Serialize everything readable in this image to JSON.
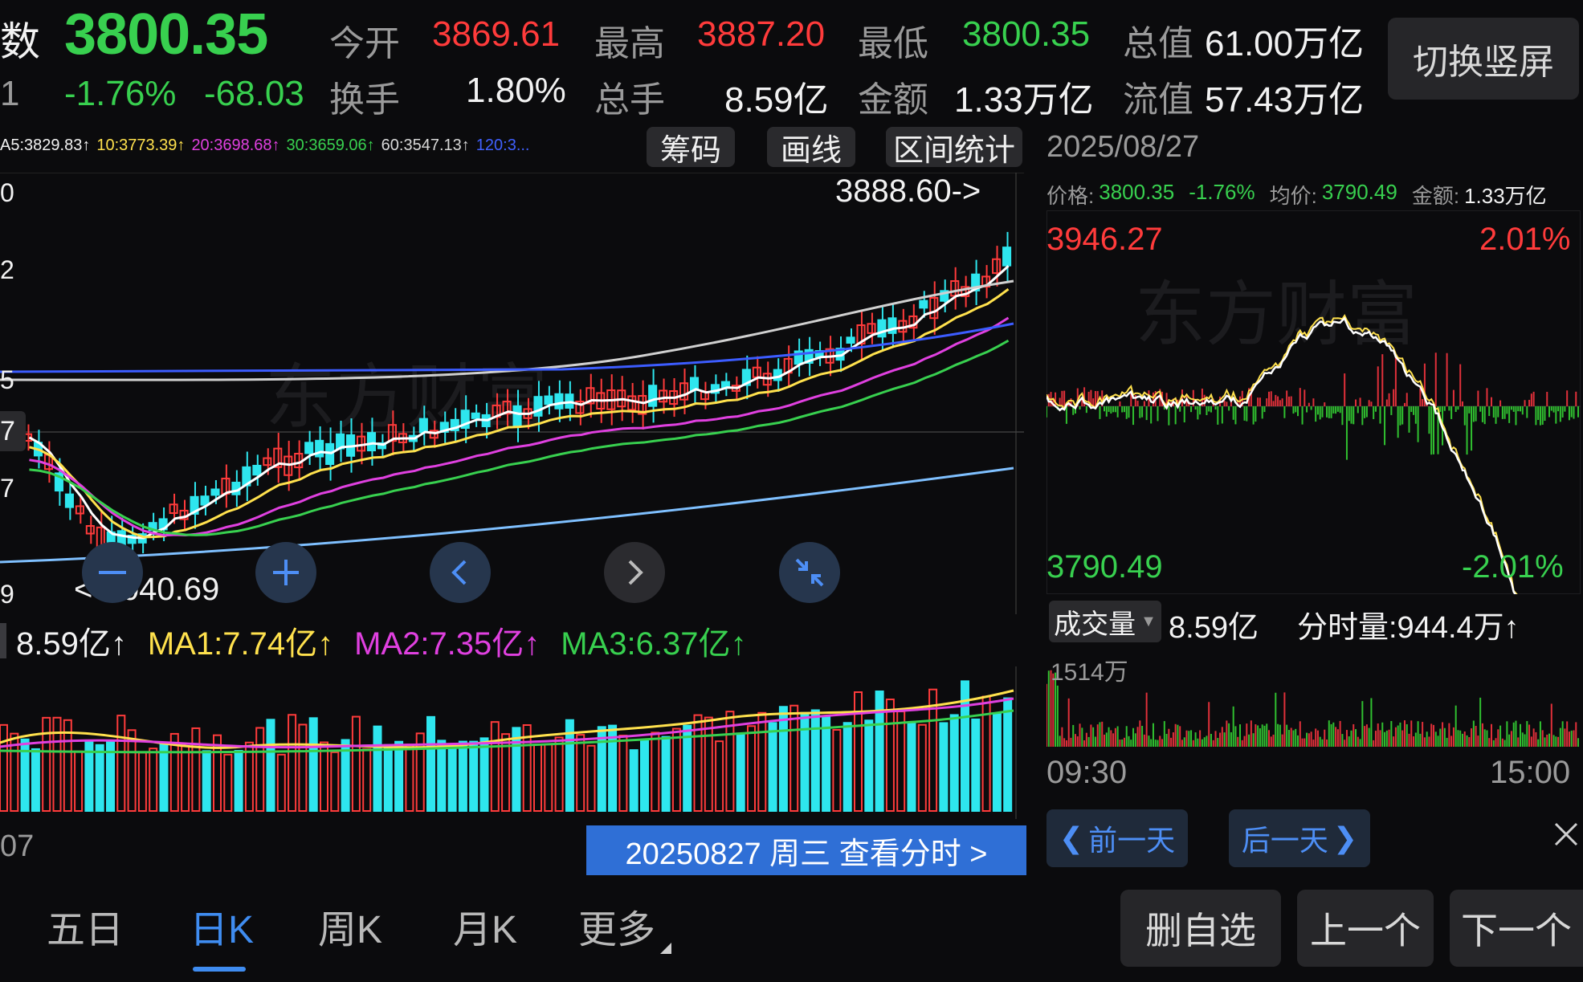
{
  "header": {
    "name_fragment": "数",
    "price": "3800.35",
    "change_pct": "-1.76%",
    "change_abs": "-68.03",
    "left_cut": "1",
    "stats": [
      {
        "label": "今开",
        "value": "3869.61",
        "color": "#ff3b3b"
      },
      {
        "label": "最高",
        "value": "3887.20",
        "color": "#ff3b3b"
      },
      {
        "label": "最低",
        "value": "3800.35",
        "color": "#38d04f"
      },
      {
        "label": "总值",
        "value": "61.00万亿",
        "color": "#f2f2f2"
      },
      {
        "label": "换手",
        "value": "1.80%",
        "color": "#f2f2f2"
      },
      {
        "label": "总手",
        "value": "8.59亿",
        "color": "#f2f2f2"
      },
      {
        "label": "金额",
        "value": "1.33万亿",
        "color": "#f2f2f2"
      },
      {
        "label": "流值",
        "value": "57.43万亿",
        "color": "#f2f2f2"
      }
    ],
    "switch_button": "切换竖屏"
  },
  "kline": {
    "ma_legend": [
      {
        "text": "A5:3829.83↑",
        "color": "#f2f2f2"
      },
      {
        "text": "10:3773.39↑",
        "color": "#ffe14d"
      },
      {
        "text": "20:3698.68↑",
        "color": "#e040e0"
      },
      {
        "text": "30:3659.06↑",
        "color": "#38d04f"
      },
      {
        "text": "60:3547.13↑",
        "color": "#d8d8d8"
      },
      {
        "text": "120:3...",
        "color": "#4060ff"
      }
    ],
    "tools": [
      "筹码",
      "画线",
      "区间统计"
    ],
    "high_marker": "3888.60->",
    "low_marker": "<-3040.69",
    "axis_fragments": [
      "0",
      "2",
      "5",
      "7",
      "7",
      "9"
    ],
    "date_fragment": "07",
    "date_bar": "20250827 周三 查看分时 >",
    "watermark": "东方财富"
  },
  "volume": {
    "legend": [
      {
        "text": "8.59亿↑",
        "color": "#f2f2f2"
      },
      {
        "text": "MA1:7.74亿↑",
        "color": "#ffe14d"
      },
      {
        "text": "MA2:7.35亿↑",
        "color": "#e040e0"
      },
      {
        "text": "MA3:6.37亿↑",
        "color": "#38d04f"
      }
    ]
  },
  "intraday": {
    "date": "2025/08/27",
    "info": [
      {
        "label": "价格:",
        "value": "3800.35",
        "color": "#38d04f"
      },
      {
        "label": "",
        "value": "-1.76%",
        "color": "#38d04f"
      },
      {
        "label": "均价:",
        "value": "3790.49",
        "color": "#38d04f"
      },
      {
        "label": "金额:",
        "value": "1.33万亿",
        "color": "#f2f2f2"
      }
    ],
    "top_price": "3946.27",
    "top_pct": "2.01%",
    "bottom_price": "3790.49",
    "bottom_pct": "-2.01%",
    "volume_select": "成交量",
    "volume_total": "8.59亿",
    "minute_volume": "分时量:944.4万↑",
    "vol_max": "1514万",
    "time_start": "09:30",
    "time_end": "15:00",
    "prev_day": "前一天",
    "next_day": "后一天",
    "watermark": "东方财富"
  },
  "bottom": {
    "tabs": [
      "五日",
      "日K",
      "周K",
      "月K",
      "更多"
    ],
    "active_tab": 1,
    "actions": [
      "删自选",
      "上一个",
      "下一个"
    ]
  }
}
